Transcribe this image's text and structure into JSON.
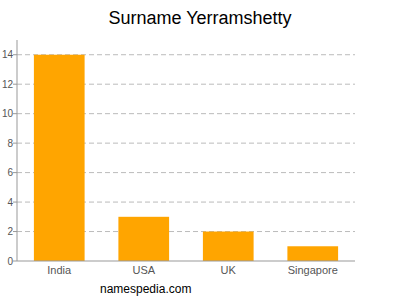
{
  "chart_data": {
    "type": "bar",
    "title": "Surname Yerramshetty",
    "categories": [
      "India",
      "USA",
      "UK",
      "Singapore"
    ],
    "values": [
      14,
      3,
      2,
      1
    ],
    "color": "#ffa500",
    "ylim": [
      0,
      15
    ],
    "yticks": [
      0,
      2,
      4,
      6,
      8,
      10,
      12,
      14
    ],
    "grid": true,
    "annotations": [
      "namespedia.com"
    ]
  }
}
